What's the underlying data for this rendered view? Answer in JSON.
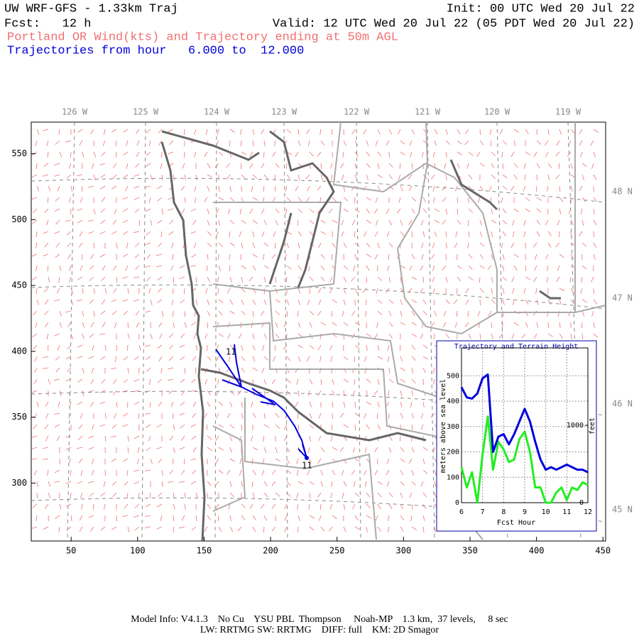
{
  "header": {
    "title": "UW WRF-GFS - 1.33km Traj",
    "init": "Init: 00 UTC Wed 20 Jul 22",
    "fcst": "Fcst:   12 h",
    "valid": "Valid: 12 UTC Wed 20 Jul 22 (05 PDT Wed 20 Jul 22)",
    "subtitle": "Portland OR Wind(kts) and Trajectory ending at 50m AGL",
    "traj_hours": "Trajectories from hour   6.000 to  12.000"
  },
  "map": {
    "xlim": [
      20,
      452
    ],
    "ylim": [
      256,
      574
    ],
    "xticks": [
      50,
      100,
      150,
      200,
      250,
      300,
      350,
      400,
      450
    ],
    "yticks": [
      300,
      350,
      400,
      450,
      500,
      550
    ],
    "lon_labels": [
      "126 W",
      "125 W",
      "124 W",
      "123 W",
      "122 W",
      "121 W",
      "120 W",
      "119 W"
    ],
    "lat_labels": [
      "48 N",
      "47 N",
      "46 N",
      "45 N"
    ],
    "trajectory_labels": [
      "11",
      "11"
    ]
  },
  "chart_data": {
    "type": "line",
    "title": "Trajectory and Terrain Height",
    "xlabel": "Fcst Hour",
    "ylabel": "meters above sea level",
    "y2label": "feet",
    "x": [
      6,
      6.25,
      6.5,
      6.75,
      7,
      7.25,
      7.5,
      7.75,
      8,
      8.25,
      8.5,
      8.75,
      9,
      9.25,
      9.5,
      9.75,
      10,
      10.25,
      10.5,
      10.75,
      11,
      11.25,
      11.5,
      11.75,
      12
    ],
    "series": [
      {
        "color": "#0000dd",
        "values": [
          455,
          415,
          410,
          430,
          490,
          505,
          200,
          260,
          270,
          230,
          270,
          320,
          370,
          320,
          240,
          170,
          130,
          140,
          130,
          140,
          150,
          140,
          130,
          130,
          120
        ]
      },
      {
        "color": "#22ee22",
        "values": [
          140,
          60,
          120,
          0,
          190,
          340,
          130,
          240,
          210,
          160,
          170,
          250,
          280,
          200,
          60,
          60,
          0,
          0,
          40,
          60,
          10,
          60,
          50,
          80,
          70
        ]
      }
    ],
    "xlim": [
      6,
      12
    ],
    "xticks": [
      6,
      7,
      8,
      9,
      10,
      11,
      12
    ],
    "ylim": [
      0,
      610
    ],
    "yticks": [
      0,
      100,
      200,
      300,
      400,
      500
    ],
    "y2lim": [
      0,
      2000
    ],
    "y2ticks": [
      0,
      1000
    ]
  },
  "footer": {
    "line1": "Model Info: V4.1.3    No Cu    YSU PBL  Thompson     Noah-MP    1.3 km,  37 levels,     8 sec",
    "line2": "LW: RRTMG SW: RRTMG    DIFF: full    KM: 2D Smagor"
  }
}
